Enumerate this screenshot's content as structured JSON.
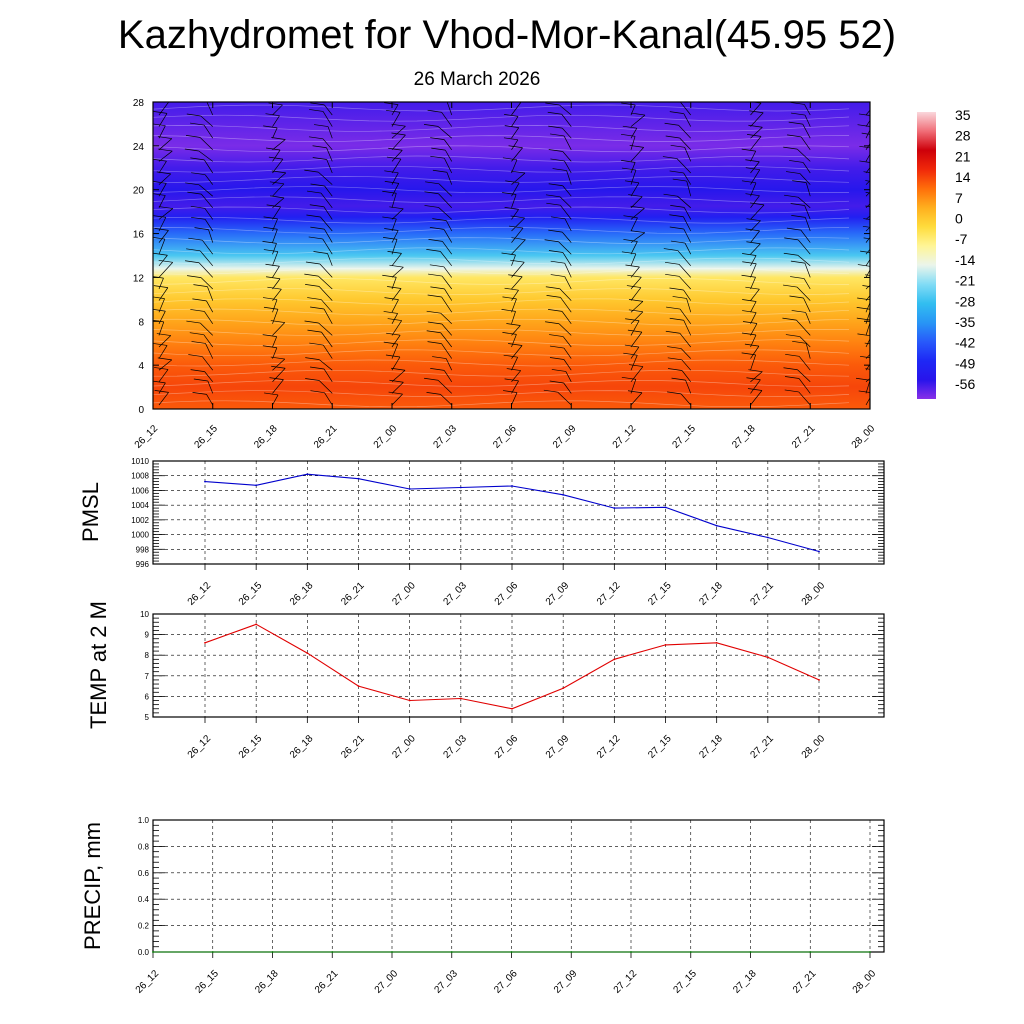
{
  "header": {
    "title": "Kazhydromet for Vhod-Mor-Kanal(45.95 52)",
    "subtitle": "26 March 2026"
  },
  "chart_data": [
    {
      "type": "heatmap",
      "panel": "upper-air",
      "description_layers": [
        "filled temperature contours",
        "wind barbs"
      ],
      "x_ticks": [
        "26_12",
        "26_15",
        "26_18",
        "26_21",
        "27_00",
        "27_03",
        "27_06",
        "27_09",
        "27_12",
        "27_15",
        "27_18",
        "27_21",
        "28_00"
      ],
      "y_ticks": [
        0,
        4,
        8,
        12,
        16,
        20,
        24,
        28
      ],
      "ylim": [
        0,
        28
      ],
      "colorbar": {
        "labels": [
          "35",
          "28",
          "21",
          "14",
          "7",
          "0",
          "-7",
          "-14",
          "-21",
          "-28",
          "-35",
          "-42",
          "-49",
          "-56"
        ],
        "range": [
          -63,
          42
        ]
      },
      "temperature_profile": {
        "height": [
          0,
          2,
          4,
          6,
          8,
          10,
          12,
          12.8,
          14,
          16,
          17.5,
          18.5,
          20,
          22,
          24,
          26,
          28
        ],
        "value": [
          16,
          18,
          16,
          12,
          8,
          3,
          -3,
          -14,
          -26,
          -40,
          -52,
          -58,
          -55,
          -58,
          -62,
          -60,
          -58
        ]
      }
    },
    {
      "type": "line",
      "panel": "pmsl",
      "ylabel": "PMSL",
      "categories": [
        "26_12",
        "26_15",
        "26_18",
        "26_21",
        "27_00",
        "27_03",
        "27_06",
        "27_09",
        "27_12",
        "27_15",
        "27_18",
        "27_21",
        "28_00"
      ],
      "values": [
        1007.2,
        1006.7,
        1008.2,
        1007.6,
        1006.2,
        1006.4,
        1006.6,
        1005.4,
        1003.6,
        1003.7,
        1001.2,
        999.6,
        997.7
      ],
      "ylim": [
        996,
        1010
      ],
      "yticks": [
        996,
        998,
        1000,
        1002,
        1004,
        1006,
        1008,
        1010
      ],
      "color": "#0000cc",
      "grid": true
    },
    {
      "type": "line",
      "panel": "temp2m",
      "ylabel": "TEMP at 2 M",
      "categories": [
        "26_12",
        "26_15",
        "26_18",
        "26_21",
        "27_00",
        "27_03",
        "27_06",
        "27_09",
        "27_12",
        "27_15",
        "27_18",
        "27_21",
        "28_00"
      ],
      "values": [
        8.6,
        9.5,
        8.1,
        6.5,
        5.8,
        5.9,
        5.4,
        6.4,
        7.8,
        8.5,
        8.6,
        7.9,
        6.8
      ],
      "ylim": [
        5,
        10
      ],
      "yticks": [
        5,
        6,
        7,
        8,
        9,
        10
      ],
      "color": "#e00000",
      "grid": true
    },
    {
      "type": "line",
      "panel": "precip",
      "ylabel": "PRECIP, mm",
      "categories": [
        "26_12",
        "26_15",
        "26_18",
        "26_21",
        "27_00",
        "27_03",
        "27_06",
        "27_09",
        "27_12",
        "27_15",
        "27_18",
        "27_21",
        "28_00"
      ],
      "values": [
        0,
        0,
        0,
        0,
        0,
        0,
        0,
        0,
        0,
        0,
        0,
        0,
        0
      ],
      "ylim": [
        0,
        1
      ],
      "yticks": [
        "0.0",
        "0.2",
        "0.4",
        "0.6",
        "0.8",
        "1.0"
      ],
      "color": "#008000",
      "grid": true
    }
  ]
}
